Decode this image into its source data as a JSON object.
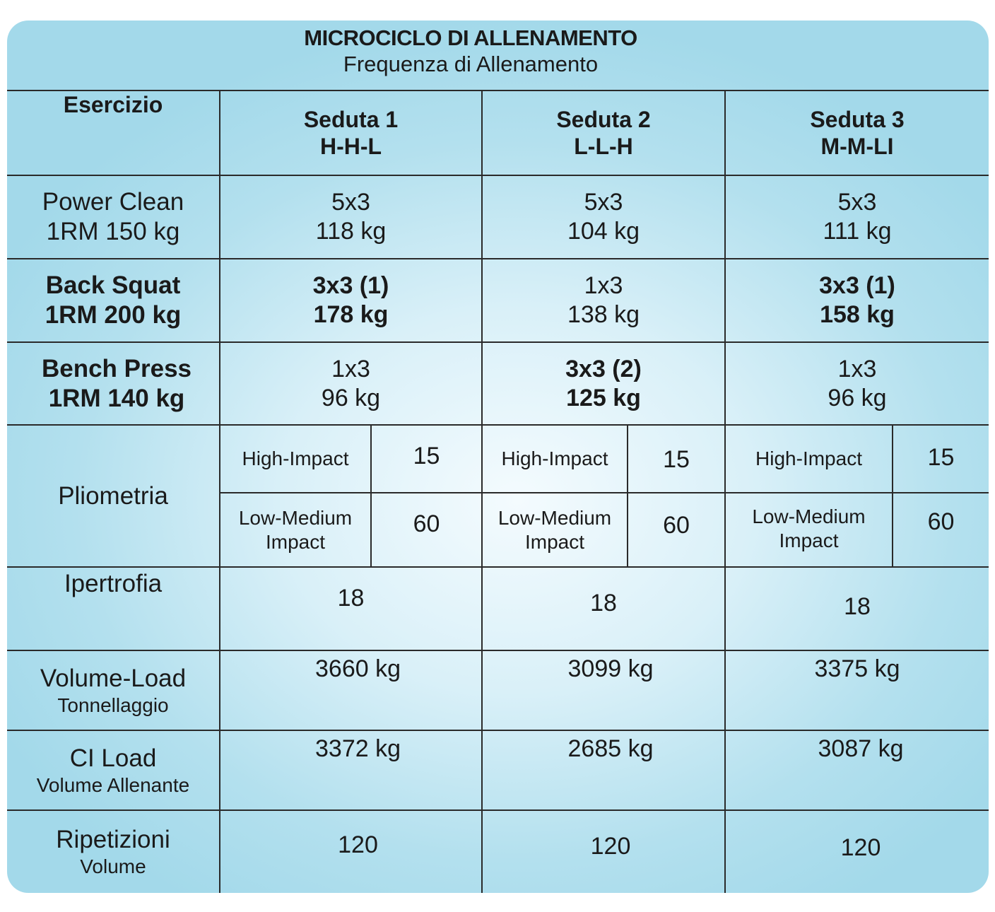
{
  "title": "MICROCICLO DI ALLENAMENTO",
  "subtitle": "Frequenza di Allenamento",
  "header": {
    "exercise_label": "Esercizio",
    "sessions": [
      {
        "name": "Seduta 1",
        "pattern": "H-H-L"
      },
      {
        "name": "Seduta 2",
        "pattern": "L-L-H"
      },
      {
        "name": "Seduta 3",
        "pattern": "M-M-LI"
      }
    ]
  },
  "rows": {
    "power_clean": {
      "name": "Power Clean",
      "rm": "1RM 150 kg",
      "s1": {
        "sets": "5x3",
        "load": "118 kg"
      },
      "s2": {
        "sets": "5x3",
        "load": "104 kg"
      },
      "s3": {
        "sets": "5x3",
        "load": "111 kg"
      }
    },
    "back_squat": {
      "name": "Back Squat",
      "rm": "1RM 200 kg",
      "s1": {
        "sets": "3x3 (1)",
        "load": "178 kg"
      },
      "s2": {
        "sets": "1x3",
        "load": "138 kg"
      },
      "s3": {
        "sets": "3x3 (1)",
        "load": "158 kg"
      }
    },
    "bench_press": {
      "name": "Bench Press",
      "rm": "1RM 140 kg",
      "s1": {
        "sets": "1x3",
        "load": "96 kg"
      },
      "s2": {
        "sets": "3x3 (2)",
        "load": "125 kg"
      },
      "s3": {
        "sets": "1x3",
        "load": "96 kg"
      }
    },
    "pliometria": {
      "name": "Pliometria",
      "high_label": "High-Impact",
      "low_label_1": "Low-Medium",
      "low_label_2": "Impact",
      "s1": {
        "high": "15",
        "low": "60"
      },
      "s2": {
        "high": "15",
        "low": "60"
      },
      "s3": {
        "high": "15",
        "low": "60"
      }
    },
    "ipertrofia": {
      "name": "Ipertrofia",
      "s1": "18",
      "s2": "18",
      "s3": "18"
    },
    "volume_load": {
      "name": "Volume-Load",
      "sub": "Tonnellaggio",
      "s1": "3660 kg",
      "s2": "3099 kg",
      "s3": "3375 kg"
    },
    "ci_load": {
      "name": "CI Load",
      "sub": "Volume Allenante",
      "s1": "3372 kg",
      "s2": "2685 kg",
      "s3": "3087 kg"
    },
    "ripetizioni": {
      "name": "Ripetizioni",
      "sub": "Volume",
      "s1": "120",
      "s2": "120",
      "s3": "120"
    }
  }
}
